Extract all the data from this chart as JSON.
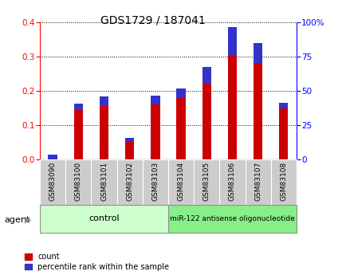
{
  "title": "GDS1729 / 187041",
  "categories": [
    "GSM83090",
    "GSM83100",
    "GSM83101",
    "GSM83102",
    "GSM83103",
    "GSM83104",
    "GSM83105",
    "GSM83106",
    "GSM83107",
    "GSM83108"
  ],
  "red_values": [
    0.001,
    0.145,
    0.155,
    0.052,
    0.16,
    0.178,
    0.222,
    0.305,
    0.28,
    0.148
  ],
  "blue_values": [
    0.012,
    0.018,
    0.028,
    0.01,
    0.025,
    0.028,
    0.048,
    0.08,
    0.058,
    0.018
  ],
  "ylim_left": [
    0,
    0.4
  ],
  "ylim_right": [
    0,
    100
  ],
  "yticks_left": [
    0,
    0.1,
    0.2,
    0.3,
    0.4
  ],
  "yticks_right": [
    0,
    25,
    50,
    75,
    100
  ],
  "n_control": 5,
  "n_treatment": 5,
  "control_label": "control",
  "treatment_label": "miR-122 antisense oligonucleotide",
  "agent_label": "agent",
  "legend_count_label": "count",
  "legend_pct_label": "percentile rank within the sample",
  "red_color": "#cc0000",
  "blue_color": "#3333cc",
  "control_bg": "#ccffcc",
  "treatment_bg": "#88ee88",
  "xlabel_bg": "#cccccc",
  "bar_width": 0.35,
  "title_fontsize": 10,
  "tick_fontsize": 7.5,
  "label_fontsize": 8
}
